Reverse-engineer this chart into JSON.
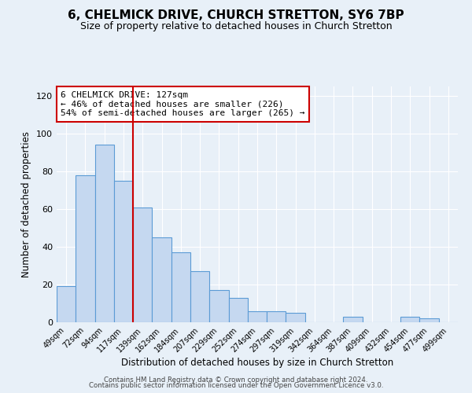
{
  "title": "6, CHELMICK DRIVE, CHURCH STRETTON, SY6 7BP",
  "subtitle": "Size of property relative to detached houses in Church Stretton",
  "xlabel": "Distribution of detached houses by size in Church Stretton",
  "ylabel": "Number of detached properties",
  "bar_labels": [
    "49sqm",
    "72sqm",
    "94sqm",
    "117sqm",
    "139sqm",
    "162sqm",
    "184sqm",
    "207sqm",
    "229sqm",
    "252sqm",
    "274sqm",
    "297sqm",
    "319sqm",
    "342sqm",
    "364sqm",
    "387sqm",
    "409sqm",
    "432sqm",
    "454sqm",
    "477sqm",
    "499sqm"
  ],
  "bar_values": [
    19,
    78,
    94,
    75,
    61,
    45,
    37,
    27,
    17,
    13,
    6,
    6,
    5,
    0,
    0,
    3,
    0,
    0,
    3,
    2,
    0
  ],
  "bar_color": "#c5d8f0",
  "bar_edge_color": "#5b9bd5",
  "vline_x": 3.5,
  "vline_color": "#cc0000",
  "annotation_line1": "6 CHELMICK DRIVE: 127sqm",
  "annotation_line2": "← 46% of detached houses are smaller (226)",
  "annotation_line3": "54% of semi-detached houses are larger (265) →",
  "annotation_box_edgecolor": "#cc0000",
  "ylim": [
    0,
    125
  ],
  "yticks": [
    0,
    20,
    40,
    60,
    80,
    100,
    120
  ],
  "footer1": "Contains HM Land Registry data © Crown copyright and database right 2024.",
  "footer2": "Contains public sector information licensed under the Open Government Licence v3.0.",
  "bg_color": "#e8f0f8",
  "plot_bg_color": "#e8f0f8",
  "title_fontsize": 11,
  "subtitle_fontsize": 9
}
